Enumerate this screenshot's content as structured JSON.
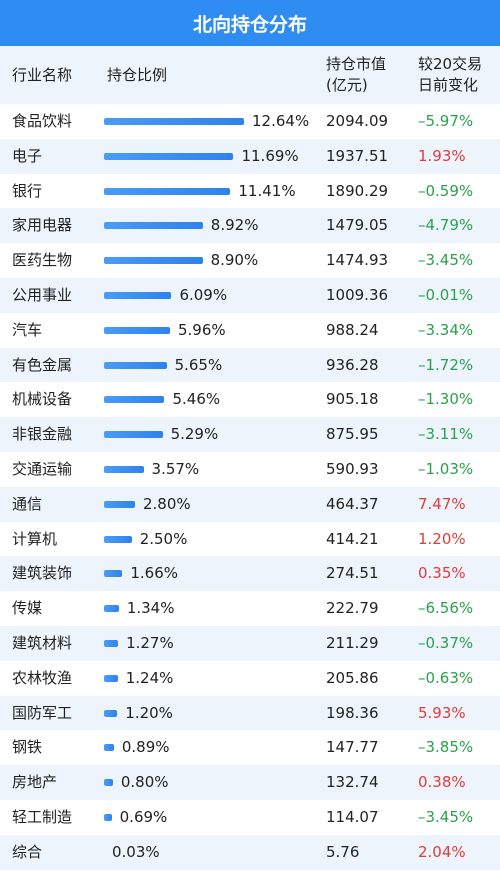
{
  "title": "北向持仓分布",
  "colors": {
    "header_blue": "#2f8cf2",
    "bar_blue": "#2e82ec",
    "up_red": "#e23b3b",
    "down_green": "#2aa14b",
    "stripe": "#edf4fc"
  },
  "header": {
    "industry": "行业名称",
    "ratio": "持仓比例",
    "value_line1": "持仓市值",
    "value_line2": "(亿元)",
    "change_line1": "较20交易",
    "change_line2": "日前变化"
  },
  "chart_data": {
    "type": "table",
    "columns": [
      "行业名称",
      "持仓比例",
      "持仓市值(亿元)",
      "较20交易日前变化"
    ],
    "rows": [
      {
        "industry": "食品饮料",
        "ratio": 12.64,
        "ratio_label": "12.64%",
        "value": "2094.09",
        "change": "–5.97%",
        "dir": "down"
      },
      {
        "industry": "电子",
        "ratio": 11.69,
        "ratio_label": "11.69%",
        "value": "1937.51",
        "change": "1.93%",
        "dir": "up"
      },
      {
        "industry": "银行",
        "ratio": 11.41,
        "ratio_label": "11.41%",
        "value": "1890.29",
        "change": "–0.59%",
        "dir": "down"
      },
      {
        "industry": "家用电器",
        "ratio": 8.92,
        "ratio_label": "8.92%",
        "value": "1479.05",
        "change": "–4.79%",
        "dir": "down"
      },
      {
        "industry": "医药生物",
        "ratio": 8.9,
        "ratio_label": "8.90%",
        "value": "1474.93",
        "change": "–3.45%",
        "dir": "down"
      },
      {
        "industry": "公用事业",
        "ratio": 6.09,
        "ratio_label": "6.09%",
        "value": "1009.36",
        "change": "–0.01%",
        "dir": "down"
      },
      {
        "industry": "汽车",
        "ratio": 5.96,
        "ratio_label": "5.96%",
        "value": "988.24",
        "change": "–3.34%",
        "dir": "down"
      },
      {
        "industry": "有色金属",
        "ratio": 5.65,
        "ratio_label": "5.65%",
        "value": "936.28",
        "change": "–1.72%",
        "dir": "down"
      },
      {
        "industry": "机械设备",
        "ratio": 5.46,
        "ratio_label": "5.46%",
        "value": "905.18",
        "change": "–1.30%",
        "dir": "down"
      },
      {
        "industry": "非银金融",
        "ratio": 5.29,
        "ratio_label": "5.29%",
        "value": "875.95",
        "change": "–3.11%",
        "dir": "down"
      },
      {
        "industry": "交通运输",
        "ratio": 3.57,
        "ratio_label": "3.57%",
        "value": "590.93",
        "change": "–1.03%",
        "dir": "down"
      },
      {
        "industry": "通信",
        "ratio": 2.8,
        "ratio_label": "2.80%",
        "value": "464.37",
        "change": "7.47%",
        "dir": "up"
      },
      {
        "industry": "计算机",
        "ratio": 2.5,
        "ratio_label": "2.50%",
        "value": "414.21",
        "change": "1.20%",
        "dir": "up"
      },
      {
        "industry": "建筑装饰",
        "ratio": 1.66,
        "ratio_label": "1.66%",
        "value": "274.51",
        "change": "0.35%",
        "dir": "up"
      },
      {
        "industry": "传媒",
        "ratio": 1.34,
        "ratio_label": "1.34%",
        "value": "222.79",
        "change": "–6.56%",
        "dir": "down"
      },
      {
        "industry": "建筑材料",
        "ratio": 1.27,
        "ratio_label": "1.27%",
        "value": "211.29",
        "change": "–0.37%",
        "dir": "down"
      },
      {
        "industry": "农林牧渔",
        "ratio": 1.24,
        "ratio_label": "1.24%",
        "value": "205.86",
        "change": "–0.63%",
        "dir": "down"
      },
      {
        "industry": "国防军工",
        "ratio": 1.2,
        "ratio_label": "1.20%",
        "value": "198.36",
        "change": "5.93%",
        "dir": "up"
      },
      {
        "industry": "钢铁",
        "ratio": 0.89,
        "ratio_label": "0.89%",
        "value": "147.77",
        "change": "–3.85%",
        "dir": "down"
      },
      {
        "industry": "房地产",
        "ratio": 0.8,
        "ratio_label": "0.80%",
        "value": "132.74",
        "change": "0.38%",
        "dir": "up"
      },
      {
        "industry": "轻工制造",
        "ratio": 0.69,
        "ratio_label": "0.69%",
        "value": "114.07",
        "change": "–3.45%",
        "dir": "down"
      },
      {
        "industry": "综合",
        "ratio": 0.03,
        "ratio_label": "0.03%",
        "value": "5.76",
        "change": "2.04%",
        "dir": "up"
      }
    ]
  }
}
